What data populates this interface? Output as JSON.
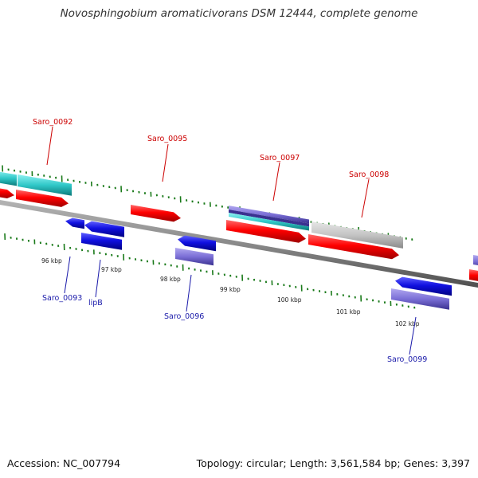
{
  "title": "Novosphingobium aromaticivorans DSM 12444, complete genome",
  "footer": {
    "accession": "Accession: NC_007794",
    "summary": "Topology: circular; Length: 3,561,584 bp; Genes: 3,397"
  },
  "colors": {
    "backbone": "#7a7a7a",
    "cds": "#ff0000",
    "gene": "#1010e0",
    "misc_feature": "#7b6fd6",
    "rna": "#2fd0d0",
    "ticks": "#1a7a1a",
    "label_top": "#cc0000",
    "label_bottom": "#1a1aaa"
  },
  "scale_labels": [
    "96 kbp",
    "97 kbp",
    "98 kbp",
    "99 kbp",
    "100 kbp",
    "101 kbp",
    "102 kbp"
  ],
  "gene_labels_top": [
    "Saro_0092",
    "Saro_0095",
    "Saro_0097",
    "Saro_0098"
  ],
  "gene_labels_bottom": [
    "Saro_0093",
    "lipB",
    "Saro_0096",
    "Saro_0099"
  ]
}
